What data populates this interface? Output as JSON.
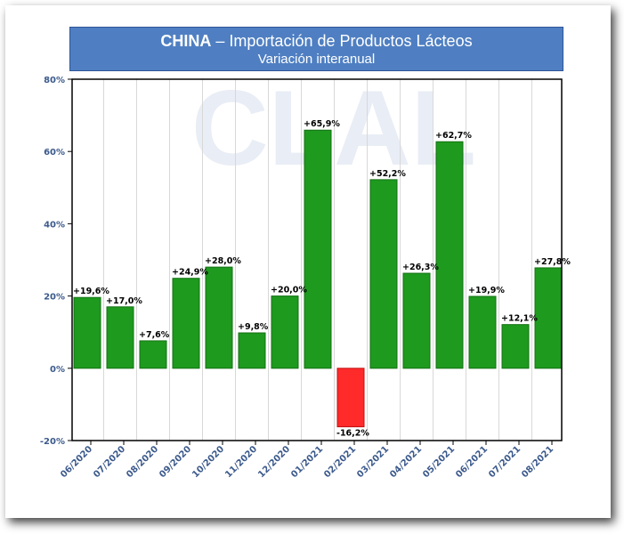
{
  "title": {
    "bold": "CHINA",
    "rest": " – Importación de Productos Lácteos",
    "subtitle": "Variación interanual"
  },
  "watermark": "CLAL",
  "chart_data": {
    "type": "bar",
    "categories": [
      "06/2020",
      "07/2020",
      "08/2020",
      "09/2020",
      "10/2020",
      "11/2020",
      "12/2020",
      "01/2021",
      "02/2021",
      "03/2021",
      "04/2021",
      "05/2021",
      "06/2021",
      "07/2021",
      "08/2021"
    ],
    "values": [
      19.6,
      17.0,
      7.6,
      24.9,
      28.0,
      9.8,
      20.0,
      65.9,
      -16.2,
      52.2,
      26.3,
      62.7,
      19.9,
      12.1,
      27.8
    ],
    "data_labels": [
      "+19,6%",
      "+17,0%",
      "+7,6%",
      "+24,9%",
      "+28,0%",
      "+9,8%",
      "+20,0%",
      "+65,9%",
      "-16,2%",
      "+52,2%",
      "+26,3%",
      "+62,7%",
      "+19,9%",
      "+12,1%",
      "+27,8%"
    ],
    "y_ticks": [
      80,
      60,
      40,
      20,
      0,
      -20
    ],
    "y_tick_labels": [
      "80%",
      "60%",
      "40%",
      "20%",
      "0%",
      "-20%"
    ],
    "ylim": [
      -20,
      80
    ],
    "grid": "vertical",
    "colors": {
      "positive": "#1e9a1e",
      "negative": "#ff2a2a",
      "axis_text": "#3c5a8c",
      "title_bg": "#4f7fc2"
    }
  }
}
